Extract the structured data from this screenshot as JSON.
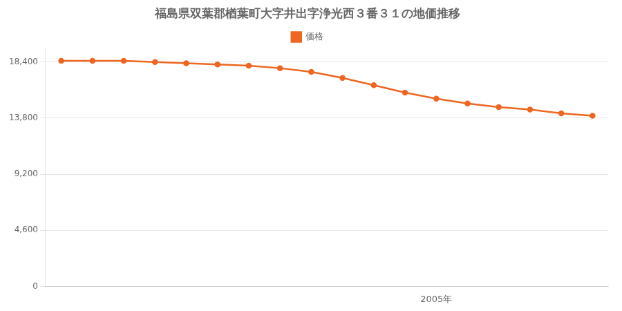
{
  "chart_data": {
    "type": "line",
    "title": "福島県双葉郡楢葉町大字井出字浄光西３番３１の地価推移",
    "x": [
      1993,
      1994,
      1995,
      1996,
      1997,
      1998,
      1999,
      2000,
      2001,
      2002,
      2003,
      2004,
      2005,
      2006,
      2007,
      2008,
      2009,
      2010
    ],
    "series": [
      {
        "name": "価格",
        "color": "#EE6622",
        "marker": "circle",
        "values": [
          18500,
          18500,
          18500,
          18400,
          18300,
          18200,
          18100,
          17900,
          17600,
          17100,
          16500,
          15900,
          15400,
          15000,
          14700,
          14500,
          14200,
          14000
        ]
      }
    ],
    "xlim": [
      1992.5,
      2010.5
    ],
    "xticks": [
      {
        "value": 2005,
        "label": "2005年"
      }
    ],
    "ylim": [
      0,
      19500
    ],
    "yticks": [
      0,
      {
        "value": 4600,
        "label": "4,600"
      },
      {
        "value": 9200,
        "label": "9,200"
      },
      {
        "value": 13800,
        "label": "13,800"
      },
      {
        "value": 18400,
        "label": "18,400"
      }
    ],
    "grid": "y",
    "legend": "top"
  }
}
